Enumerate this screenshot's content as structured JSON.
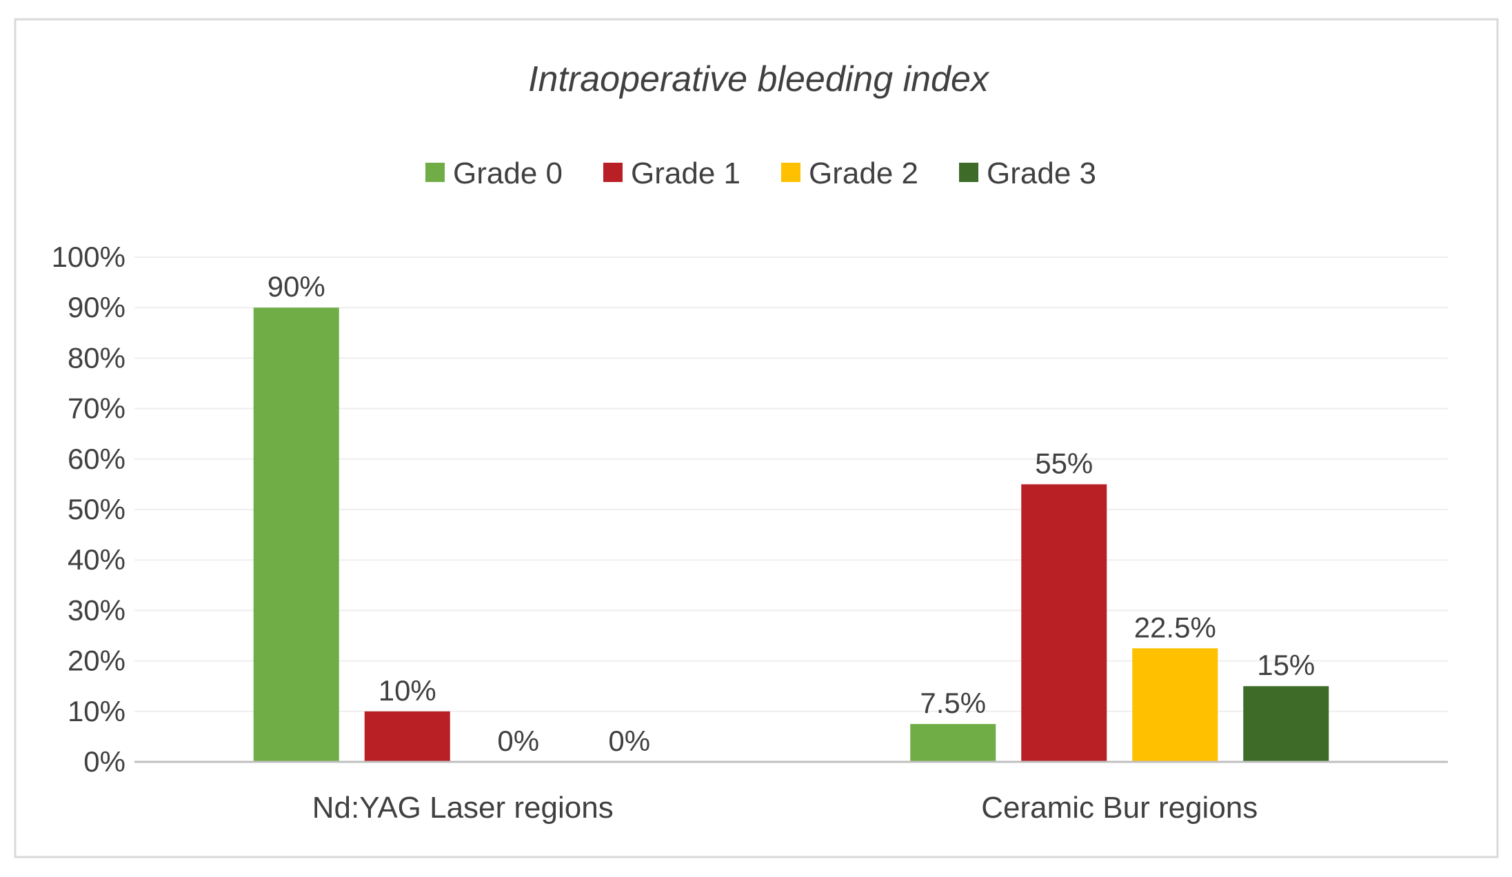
{
  "chart_data": {
    "type": "bar",
    "title": "Intraoperative bleeding index",
    "xlabel": "",
    "ylabel": "",
    "categories": [
      "Nd:YAG Laser regions",
      "Ceramic Bur regions"
    ],
    "series": [
      {
        "name": "Grade 0",
        "color": "#70AD47",
        "values": [
          90,
          7.5
        ],
        "labels": [
          "90%",
          "7.5%"
        ]
      },
      {
        "name": "Grade 1",
        "color": "#B82025",
        "values": [
          10,
          55
        ],
        "labels": [
          "10%",
          "55%"
        ]
      },
      {
        "name": "Grade 2",
        "color": "#FFC000",
        "values": [
          0,
          22.5
        ],
        "labels": [
          "0%",
          "22.5%"
        ]
      },
      {
        "name": "Grade 3",
        "color": "#3E6B27",
        "values": [
          0,
          15
        ],
        "labels": [
          "0%",
          "15%"
        ]
      }
    ],
    "ylim": [
      0,
      100
    ],
    "yticks": [
      0,
      10,
      20,
      30,
      40,
      50,
      60,
      70,
      80,
      90,
      100
    ],
    "ytick_labels": [
      "0%",
      "10%",
      "20%",
      "30%",
      "40%",
      "50%",
      "60%",
      "70%",
      "80%",
      "90%",
      "100%"
    ],
    "grid": true,
    "legend_position": "top-center"
  }
}
